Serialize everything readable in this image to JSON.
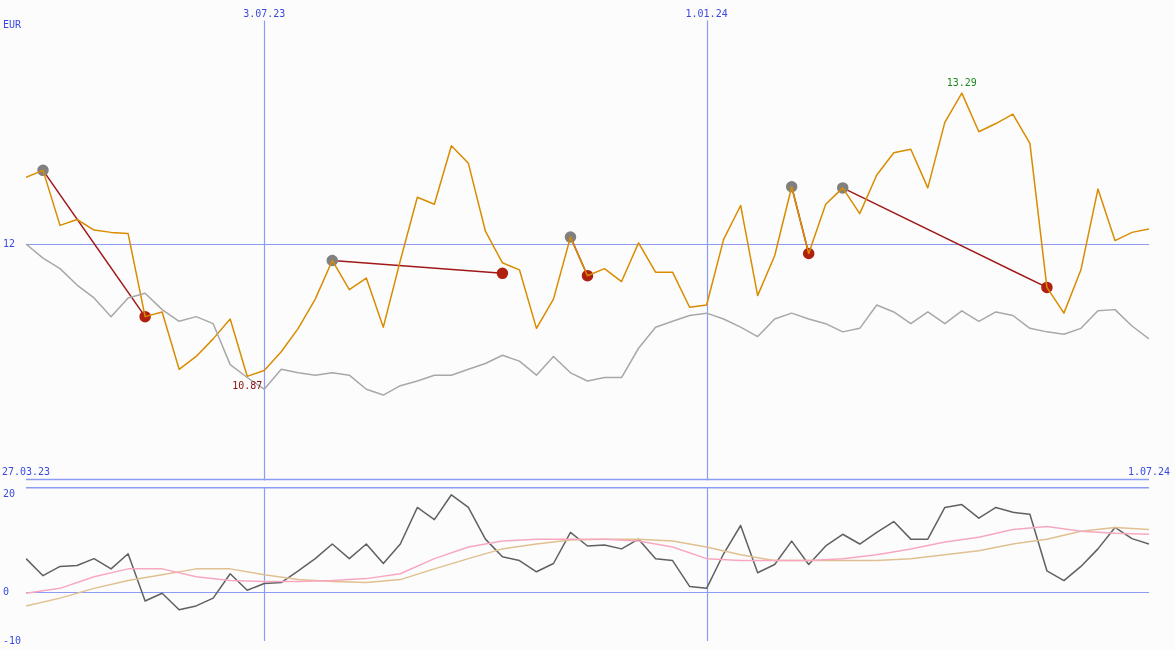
{
  "chart_data": [
    {
      "type": "line",
      "ylabel": "EUR",
      "xlim": [
        "2023-03-27",
        "2024-07-01"
      ],
      "xticks": [
        {
          "value": "2023-03-27",
          "label": "27.03.23"
        },
        {
          "value": "2024-07-01",
          "label": "1.07.24"
        }
      ],
      "x2lim": [
        "2023-03-27",
        "2024-07-01"
      ],
      "x2ticks": [
        {
          "value": "2023-07-03",
          "label": "3.07.23"
        },
        {
          "value": "2024-01-01",
          "label": "1.01.24"
        }
      ],
      "ylim": [
        9.98,
        14.03
      ],
      "grid": "x",
      "ref_lines": [
        {
          "axis": "y",
          "value": 12,
          "label": "12"
        }
      ],
      "marker": "none",
      "x": [
        "2023-03-27",
        "2023-04-03",
        "2023-04-10",
        "2023-04-17",
        "2023-04-24",
        "2023-05-01",
        "2023-05-08",
        "2023-05-15",
        "2023-05-22",
        "2023-05-29",
        "2023-06-05",
        "2023-06-12",
        "2023-06-19",
        "2023-06-26",
        "2023-07-03",
        "2023-07-10",
        "2023-07-17",
        "2023-07-24",
        "2023-07-31",
        "2023-08-07",
        "2023-08-14",
        "2023-08-21",
        "2023-08-28",
        "2023-09-04",
        "2023-09-11",
        "2023-09-18",
        "2023-09-25",
        "2023-10-02",
        "2023-10-09",
        "2023-10-16",
        "2023-10-23",
        "2023-10-30",
        "2023-11-06",
        "2023-11-13",
        "2023-11-20",
        "2023-11-27",
        "2023-12-04",
        "2023-12-11",
        "2023-12-18",
        "2023-12-25",
        "2024-01-01",
        "2024-01-08",
        "2024-01-15",
        "2024-01-22",
        "2024-01-29",
        "2024-02-05",
        "2024-02-12",
        "2024-02-19",
        "2024-02-26",
        "2024-03-04",
        "2024-03-11",
        "2024-03-18",
        "2024-03-25",
        "2024-04-01",
        "2024-04-08",
        "2024-04-15",
        "2024-04-22",
        "2024-04-29",
        "2024-05-06",
        "2024-05-13",
        "2024-05-20",
        "2024-05-27",
        "2024-06-03",
        "2024-06-10",
        "2024-06-17",
        "2024-06-24",
        "2024-07-01"
      ],
      "series": [
        {
          "color": "#a8a8a8",
          "values": [
            12.0,
            11.88,
            11.79,
            11.65,
            11.54,
            11.38,
            11.54,
            11.58,
            11.44,
            11.34,
            11.38,
            11.32,
            10.97,
            10.86,
            10.76,
            10.93,
            10.9,
            10.88,
            10.9,
            10.88,
            10.76,
            10.71,
            10.79,
            10.83,
            10.88,
            10.88,
            10.93,
            10.98,
            11.05,
            11.0,
            10.88,
            11.04,
            10.9,
            10.83,
            10.86,
            10.86,
            11.11,
            11.29,
            11.34,
            11.39,
            11.41,
            11.36,
            11.29,
            11.21,
            11.36,
            11.41,
            11.36,
            11.32,
            11.25,
            11.28,
            11.48,
            11.42,
            11.32,
            11.42,
            11.32,
            11.43,
            11.34,
            11.42,
            11.39,
            11.28,
            11.25,
            11.23,
            11.28,
            11.43,
            11.44,
            11.3,
            11.19
          ]
        },
        {
          "color": "#d98c00",
          "value_labels": [
            null,
            null,
            null,
            null,
            null,
            null,
            null,
            null,
            null,
            null,
            null,
            null,
            null,
            "10.87",
            null,
            null,
            null,
            null,
            null,
            null,
            null,
            null,
            null,
            null,
            null,
            null,
            null,
            null,
            null,
            null,
            null,
            null,
            null,
            null,
            null,
            null,
            null,
            null,
            null,
            null,
            null,
            null,
            null,
            null,
            null,
            null,
            null,
            null,
            null,
            null,
            null,
            null,
            null,
            null,
            null,
            "13.29",
            null,
            null,
            null,
            null,
            null,
            null,
            null,
            null,
            null,
            null,
            null
          ],
          "values": [
            12.57,
            12.63,
            12.16,
            12.21,
            12.12,
            12.1,
            12.09,
            11.38,
            11.42,
            10.93,
            11.04,
            11.19,
            11.36,
            10.87,
            10.92,
            11.08,
            11.28,
            11.53,
            11.86,
            11.61,
            11.71,
            11.29,
            11.86,
            12.4,
            12.34,
            12.84,
            12.69,
            12.11,
            11.84,
            11.78,
            11.28,
            11.53,
            12.06,
            11.73,
            11.79,
            11.68,
            12.01,
            11.76,
            11.76,
            11.46,
            11.48,
            12.04,
            12.33,
            11.56,
            11.9,
            12.49,
            11.92,
            12.34,
            12.48,
            12.26,
            12.59,
            12.78,
            12.81,
            12.48,
            13.04,
            13.29,
            12.96,
            13.03,
            13.11,
            12.86,
            11.63,
            11.41,
            11.78,
            12.47,
            12.03,
            12.1,
            12.13
          ]
        },
        {
          "color": "#a01818",
          "marker": "circle",
          "colors": [
            "#808080",
            "#b02010"
          ],
          "x": [
            "2023-04-03",
            "2023-05-15"
          ],
          "values": [
            12.63,
            11.38
          ]
        },
        {
          "color": "#a01818",
          "marker": "circle",
          "colors": [
            "#808080",
            "#b02010"
          ],
          "x": [
            "2023-07-31",
            "2023-10-09"
          ],
          "values": [
            11.86,
            11.75
          ]
        },
        {
          "color": "#a01818",
          "marker": "circle",
          "colors": [
            "#808080",
            "#b02010"
          ],
          "x": [
            "2023-11-06",
            "2023-11-13"
          ],
          "values": [
            12.06,
            11.73
          ]
        },
        {
          "color": "#a01818",
          "marker": "circle",
          "colors": [
            "#808080",
            "#b02010"
          ],
          "x": [
            "2024-02-05",
            "2024-02-12"
          ],
          "values": [
            12.49,
            11.92
          ]
        },
        {
          "color": "#a01818",
          "marker": "circle",
          "colors": [
            "#808080",
            "#b02010"
          ],
          "x": [
            "2024-02-26",
            "2024-05-20"
          ],
          "values": [
            12.48,
            11.63
          ]
        }
      ]
    },
    {
      "type": "line",
      "xlim": [
        "2023-03-27",
        "2024-07-01"
      ],
      "ylim": [
        -10,
        21.6
      ],
      "yticks": [
        20,
        0,
        -10
      ],
      "tick_labels": "y",
      "marker": "none",
      "ref_lines": [
        {
          "axis": "y",
          "value": 0
        },
        {
          "axis": "x",
          "value": "2023-07-03"
        },
        {
          "axis": "x",
          "value": "2024-01-01"
        }
      ],
      "x": [
        "2023-03-27",
        "2023-04-03",
        "2023-04-10",
        "2023-04-17",
        "2023-04-24",
        "2023-05-01",
        "2023-05-08",
        "2023-05-15",
        "2023-05-22",
        "2023-05-29",
        "2023-06-05",
        "2023-06-12",
        "2023-06-19",
        "2023-06-26",
        "2023-07-03",
        "2023-07-10",
        "2023-07-17",
        "2023-07-24",
        "2023-07-31",
        "2023-08-07",
        "2023-08-14",
        "2023-08-21",
        "2023-08-28",
        "2023-09-04",
        "2023-09-11",
        "2023-09-18",
        "2023-09-25",
        "2023-10-02",
        "2023-10-09",
        "2023-10-16",
        "2023-10-23",
        "2023-10-30",
        "2023-11-06",
        "2023-11-13",
        "2023-11-20",
        "2023-11-27",
        "2023-12-04",
        "2023-12-11",
        "2023-12-18",
        "2023-12-25",
        "2024-01-01",
        "2024-01-08",
        "2024-01-15",
        "2024-01-22",
        "2024-01-29",
        "2024-02-05",
        "2024-02-12",
        "2024-02-19",
        "2024-02-26",
        "2024-03-04",
        "2024-03-11",
        "2024-03-18",
        "2024-03-25",
        "2024-04-01",
        "2024-04-08",
        "2024-04-15",
        "2024-04-22",
        "2024-04-29",
        "2024-05-06",
        "2024-05-13",
        "2024-05-20",
        "2024-05-27",
        "2024-06-03",
        "2024-06-10",
        "2024-06-17",
        "2024-06-24",
        "2024-07-01"
      ],
      "series": [
        {
          "color": "#f7a8c0",
          "x": [
            "2023-03-27",
            "2023-04-10",
            "2023-04-24",
            "2023-05-08",
            "2023-05-22",
            "2023-06-05",
            "2023-06-19",
            "2023-07-03",
            "2023-07-17",
            "2023-07-31",
            "2023-08-14",
            "2023-08-28",
            "2023-09-11",
            "2023-09-25",
            "2023-10-09",
            "2023-10-23",
            "2023-11-06",
            "2023-11-20",
            "2023-12-04",
            "2023-12-18",
            "2024-01-01",
            "2024-01-15",
            "2024-01-29",
            "2024-02-12",
            "2024-02-26",
            "2024-03-11",
            "2024-03-25",
            "2024-04-08",
            "2024-04-22",
            "2024-05-06",
            "2024-05-20",
            "2024-06-03",
            "2024-06-17",
            "2024-07-01"
          ],
          "values": [
            -0.2,
            0.8,
            3.2,
            4.8,
            4.8,
            3.2,
            2.4,
            2.2,
            2.2,
            2.4,
            2.8,
            3.8,
            6.9,
            9.3,
            10.5,
            10.9,
            10.9,
            10.9,
            10.5,
            9.3,
            6.9,
            6.5,
            6.5,
            6.5,
            6.9,
            7.7,
            8.9,
            10.3,
            11.3,
            12.9,
            13.5,
            12.5,
            12.1,
            11.9
          ]
        },
        {
          "color": "#e0c090",
          "x": [
            "2023-03-27",
            "2023-04-10",
            "2023-04-24",
            "2023-05-08",
            "2023-05-22",
            "2023-06-05",
            "2023-06-19",
            "2023-07-03",
            "2023-07-17",
            "2023-07-31",
            "2023-08-14",
            "2023-08-28",
            "2023-09-11",
            "2023-09-25",
            "2023-10-09",
            "2023-10-23",
            "2023-11-06",
            "2023-11-20",
            "2023-12-04",
            "2023-12-18",
            "2024-01-01",
            "2024-01-15",
            "2024-01-29",
            "2024-02-12",
            "2024-02-26",
            "2024-03-11",
            "2024-03-25",
            "2024-04-08",
            "2024-04-22",
            "2024-05-06",
            "2024-05-20",
            "2024-06-03",
            "2024-06-17",
            "2024-07-01"
          ],
          "values": [
            -2.8,
            -1.2,
            0.8,
            2.4,
            3.6,
            4.8,
            4.8,
            3.6,
            2.6,
            2.2,
            2.0,
            2.6,
            4.8,
            6.9,
            8.9,
            9.9,
            10.7,
            10.9,
            10.9,
            10.5,
            9.3,
            7.7,
            6.5,
            6.5,
            6.5,
            6.5,
            6.9,
            7.7,
            8.5,
            9.9,
            10.9,
            12.5,
            13.3,
            12.9
          ]
        },
        {
          "color": "#606060",
          "values": [
            6.9,
            3.4,
            5.3,
            5.5,
            6.9,
            4.8,
            7.9,
            -1.8,
            -0.2,
            -3.6,
            -2.8,
            -1.2,
            3.8,
            0.4,
            1.8,
            2.0,
            4.4,
            6.9,
            9.9,
            6.9,
            9.9,
            5.9,
            9.9,
            17.4,
            14.9,
            20.0,
            17.4,
            10.9,
            7.3,
            6.5,
            4.2,
            5.9,
            12.3,
            9.5,
            9.7,
            8.9,
            10.9,
            6.9,
            6.5,
            1.2,
            0.8,
            7.9,
            13.7,
            4.0,
            5.7,
            10.5,
            5.7,
            9.5,
            11.9,
            9.9,
            12.3,
            14.5,
            10.9,
            10.9,
            17.4,
            18.0,
            15.2,
            17.4,
            16.4,
            16.0,
            4.4,
            2.4,
            5.3,
            8.9,
            13.3,
            11.0,
            9.9
          ]
        }
      ]
    }
  ]
}
